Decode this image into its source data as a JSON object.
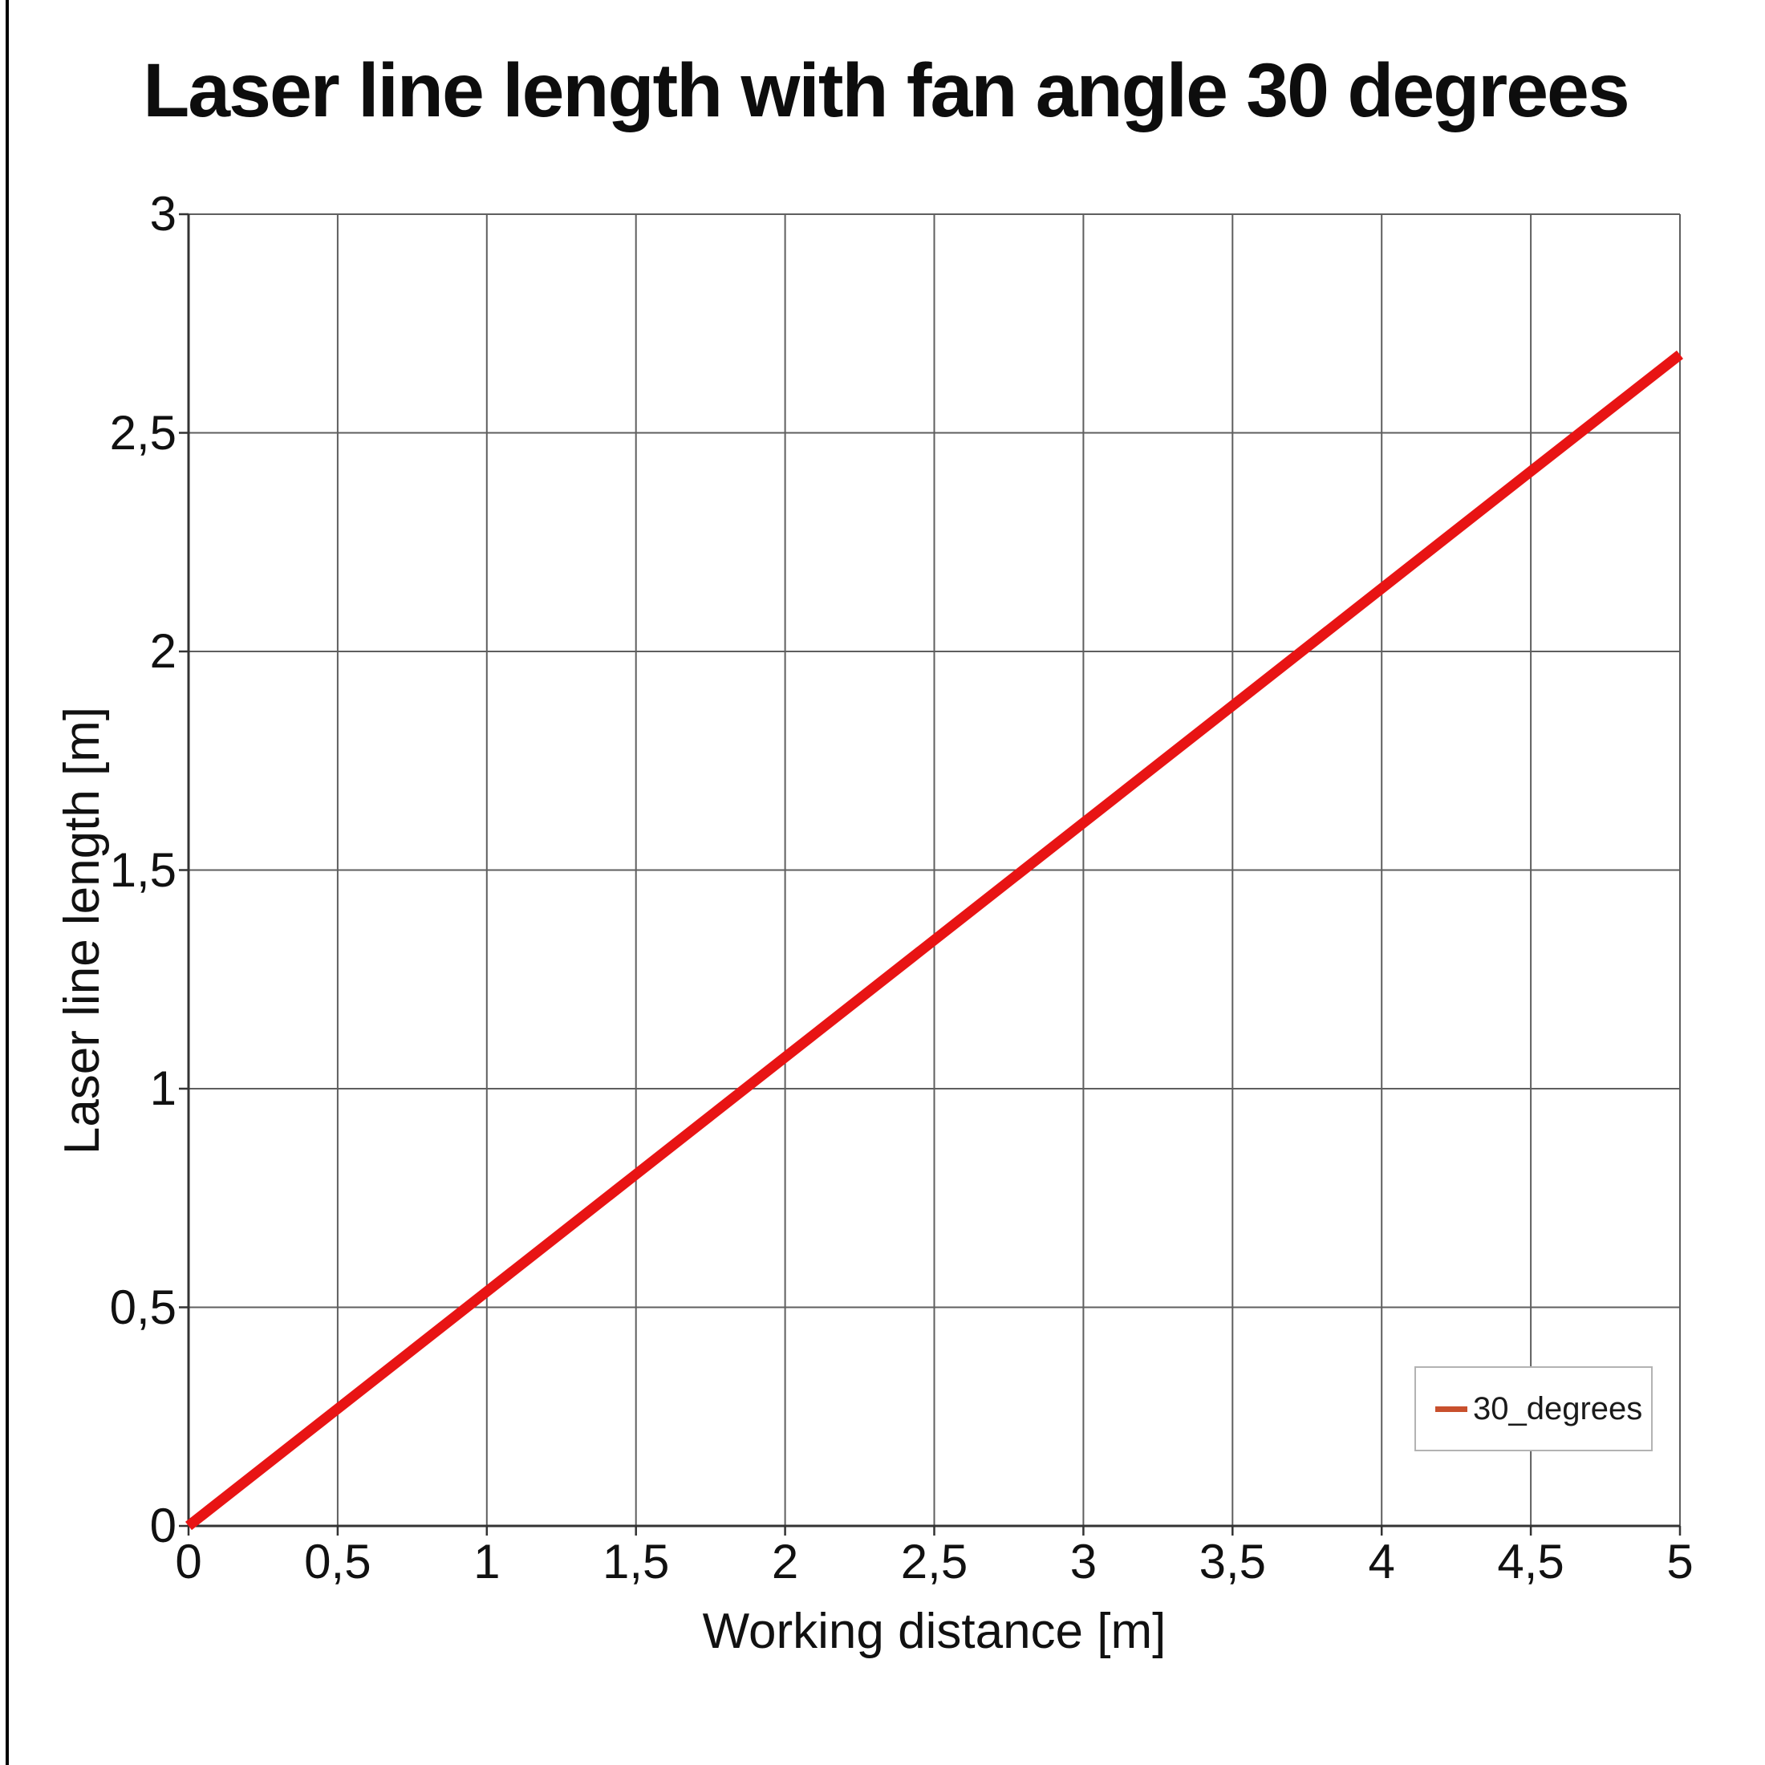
{
  "chart_data": {
    "type": "line",
    "title": "Laser line length with fan angle 30 degrees",
    "xlabel": "Working distance [m]",
    "ylabel": "Laser line length [m]",
    "xlim": [
      0,
      5
    ],
    "ylim": [
      0,
      3
    ],
    "grid": true,
    "x_ticks": {
      "values": [
        0,
        0.5,
        1,
        1.5,
        2,
        2.5,
        3,
        3.5,
        4,
        4.5,
        5
      ],
      "labels": [
        "0",
        "0,5",
        "1",
        "1,5",
        "2",
        "2,5",
        "3",
        "3,5",
        "4",
        "4,5",
        "5"
      ]
    },
    "y_ticks": {
      "values": [
        0,
        0.5,
        1,
        1.5,
        2,
        2.5,
        3
      ],
      "labels": [
        "0",
        "0,5",
        "1",
        "1,5",
        "2",
        "2,5",
        "3"
      ]
    },
    "series": [
      {
        "name": "30_degrees",
        "x": [
          0,
          0.5,
          1,
          1.5,
          2,
          2.5,
          3,
          3.5,
          4,
          4.5,
          5
        ],
        "y": [
          0,
          0.268,
          0.536,
          0.804,
          1.072,
          1.34,
          1.608,
          1.876,
          2.144,
          2.412,
          2.679
        ],
        "line_color": "#e81414",
        "line_width": 13
      }
    ],
    "legend": {
      "position": "bottom-right",
      "entries": [
        {
          "label": "30_degrees",
          "marker_color": "#c8502d"
        }
      ]
    },
    "style": {
      "gridline_color": "#5f5f5f",
      "axis_color": "#333333",
      "text_color": "#111111",
      "background": "#ffffff"
    }
  }
}
